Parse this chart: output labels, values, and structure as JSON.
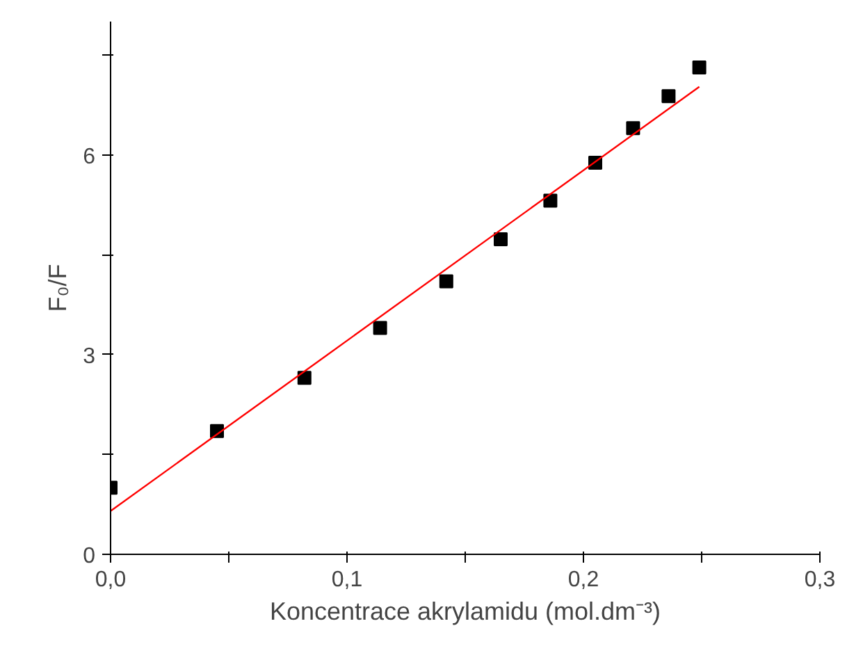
{
  "chart_data": {
    "type": "scatter",
    "xlabel": "Koncentrace akrylamidu (mol.dm⁻³)",
    "ylabel": "F₀/F",
    "xlim": [
      0,
      0.3
    ],
    "ylim": [
      0,
      8
    ],
    "xticks": [
      {
        "value": 0,
        "label": "0,0"
      },
      {
        "value": 0.05,
        "label": null
      },
      {
        "value": 0.1,
        "label": "0,1"
      },
      {
        "value": 0.15,
        "label": null
      },
      {
        "value": 0.2,
        "label": "0,2"
      },
      {
        "value": 0.25,
        "label": null
      },
      {
        "value": 0.3,
        "label": "0,3"
      }
    ],
    "yticks": [
      0,
      {
        "value": 1.5,
        "label": null
      },
      3,
      {
        "value": 4.5,
        "label": null
      },
      6,
      {
        "value": 7.5,
        "label": null
      }
    ],
    "grid": false,
    "series": [
      {
        "marker": "square",
        "color": "#000000",
        "x": [
          0,
          0.045,
          0.082,
          0.114,
          0.142,
          0.165,
          0.186,
          0.205,
          0.221,
          0.236,
          0.249
        ],
        "values": [
          1.0,
          1.85,
          2.65,
          3.4,
          4.1,
          4.73,
          5.31,
          5.88,
          6.4,
          6.88,
          7.31
        ]
      },
      {
        "type": "line",
        "line_style": "solid",
        "color": "#ff0000",
        "x": [
          0,
          0.249
        ],
        "values": [
          0.65,
          7.02
        ]
      }
    ]
  }
}
